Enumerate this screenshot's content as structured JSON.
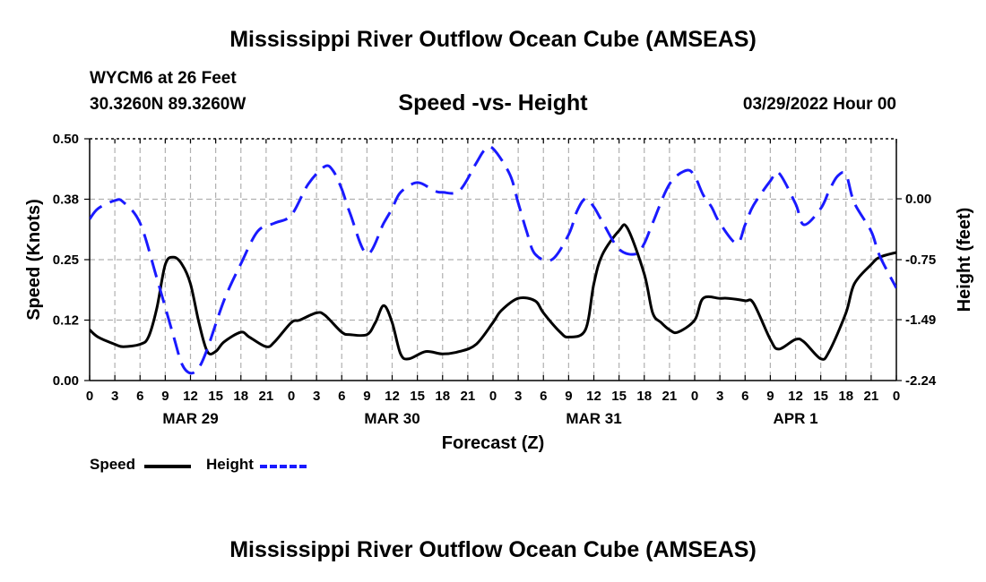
{
  "chart_data": {
    "type": "line",
    "title": "Mississippi River Outflow Ocean Cube (AMSEAS)",
    "footer_title": "Mississippi River Outflow Ocean Cube (AMSEAS)",
    "station": "WYCM6 at 26 Feet",
    "location": "30.3260N  89.3260W",
    "subtitle": "Speed -vs- Height",
    "date": "03/29/2022 Hour 00",
    "xlabel": "Forecast (Z)",
    "ylabel_left": "Speed (Knots)",
    "ylabel_right": "Height (feet)",
    "ylim_left": [
      0,
      0.5
    ],
    "ylim_right": [
      -2.24,
      0.74
    ],
    "xlim": [
      0,
      96
    ],
    "x_ticks": [
      0,
      3,
      6,
      9,
      12,
      15,
      18,
      21,
      24,
      27,
      30,
      33,
      36,
      39,
      42,
      45,
      48,
      51,
      54,
      57,
      60,
      63,
      66,
      69,
      72,
      75,
      78,
      81,
      84,
      87,
      90,
      93,
      96
    ],
    "x_tick_labels": [
      "0",
      "3",
      "6",
      "9",
      "12",
      "15",
      "18",
      "21",
      "0",
      "3",
      "6",
      "9",
      "12",
      "15",
      "18",
      "21",
      "0",
      "3",
      "6",
      "9",
      "12",
      "15",
      "18",
      "21",
      "0",
      "3",
      "6",
      "9",
      "12",
      "15",
      "18",
      "21",
      "0"
    ],
    "day_labels": [
      {
        "x": 12,
        "label": "MAR 29"
      },
      {
        "x": 36,
        "label": "MAR 30"
      },
      {
        "x": 60,
        "label": "MAR 31"
      },
      {
        "x": 84,
        "label": "APR 1"
      }
    ],
    "left_ticks": [
      0,
      0.125,
      0.25,
      0.375,
      0.5
    ],
    "left_tick_labels": [
      "0.00",
      "0.12",
      "0.25",
      "0.38",
      "0.50"
    ],
    "right_ticks": [
      -2.24,
      -1.49,
      -0.75,
      0.0
    ],
    "right_tick_labels": [
      "-2.24",
      "-1.49",
      "-0.75",
      "0.00"
    ],
    "grid": true,
    "series": [
      {
        "name": "Speed",
        "axis": "left",
        "color": "#000000",
        "dash": "solid",
        "x": [
          0,
          1,
          3,
          4,
          6,
          7,
          8,
          9,
          10,
          11,
          12,
          13,
          14,
          15,
          16,
          18,
          19,
          21,
          22,
          24,
          25,
          27,
          28,
          30,
          31,
          33,
          34,
          35,
          36,
          37,
          38,
          40,
          42,
          44,
          46,
          48,
          49,
          51,
          53,
          54,
          56,
          57,
          59,
          60,
          61,
          63,
          64,
          66,
          67,
          68,
          69,
          70,
          72,
          73,
          75,
          76,
          78,
          79,
          81,
          82,
          84,
          85,
          87,
          88,
          90,
          91,
          93,
          94,
          96
        ],
        "values": [
          0.105,
          0.09,
          0.075,
          0.07,
          0.075,
          0.09,
          0.15,
          0.24,
          0.255,
          0.24,
          0.2,
          0.12,
          0.06,
          0.06,
          0.08,
          0.1,
          0.09,
          0.07,
          0.08,
          0.12,
          0.125,
          0.14,
          0.135,
          0.1,
          0.095,
          0.095,
          0.12,
          0.155,
          0.12,
          0.055,
          0.045,
          0.06,
          0.055,
          0.06,
          0.075,
          0.12,
          0.145,
          0.17,
          0.165,
          0.14,
          0.1,
          0.09,
          0.105,
          0.2,
          0.26,
          0.31,
          0.315,
          0.22,
          0.14,
          0.12,
          0.105,
          0.1,
          0.125,
          0.17,
          0.17,
          0.17,
          0.165,
          0.16,
          0.085,
          0.065,
          0.085,
          0.08,
          0.045,
          0.06,
          0.14,
          0.2,
          0.24,
          0.255,
          0.265
        ]
      },
      {
        "name": "Height",
        "axis": "right",
        "color": "#1a1aff",
        "dash": "dashed",
        "x": [
          0,
          1,
          3,
          4,
          6,
          8,
          10,
          11,
          12,
          13,
          14,
          16,
          18,
          20,
          22,
          24,
          26,
          28,
          29,
          30,
          31,
          33,
          35,
          36,
          37,
          39,
          41,
          42,
          44,
          46,
          47,
          48,
          50,
          51,
          52,
          53,
          55,
          57,
          58,
          59,
          60,
          61,
          63,
          65,
          66,
          67,
          69,
          71,
          72,
          73,
          74,
          75,
          77,
          78,
          79,
          81,
          82,
          84,
          85,
          87,
          88,
          89,
          90,
          91,
          93,
          94,
          96
        ],
        "values": [
          -0.25,
          -0.12,
          -0.02,
          -0.04,
          -0.3,
          -0.98,
          -1.7,
          -2.04,
          -2.15,
          -2.08,
          -1.85,
          -1.25,
          -0.8,
          -0.4,
          -0.3,
          -0.2,
          0.18,
          0.4,
          0.34,
          0.12,
          -0.18,
          -0.68,
          -0.3,
          -0.12,
          0.08,
          0.2,
          0.1,
          0.08,
          0.1,
          0.44,
          0.6,
          0.62,
          0.3,
          -0.05,
          -0.4,
          -0.68,
          -0.75,
          -0.44,
          -0.15,
          0.0,
          -0.1,
          -0.28,
          -0.62,
          -0.68,
          -0.55,
          -0.3,
          0.18,
          0.35,
          0.28,
          0.05,
          -0.1,
          -0.3,
          -0.55,
          -0.32,
          -0.08,
          0.22,
          0.32,
          -0.06,
          -0.32,
          -0.12,
          0.1,
          0.28,
          0.3,
          -0.05,
          -0.4,
          -0.7,
          -1.1
        ]
      }
    ]
  },
  "legend": {
    "speed_label": "Speed",
    "height_label": "Height"
  }
}
